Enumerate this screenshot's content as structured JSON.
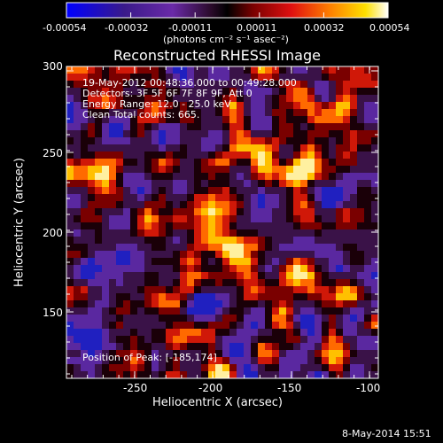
{
  "colorbar": {
    "tick_labels": [
      "-0.00054",
      "-0.00032",
      "-0.00011",
      "0.00011",
      "0.00032",
      "0.00054"
    ],
    "units": "(photons cm⁻² s⁻¹ asec⁻²)",
    "min": -0.00054,
    "max": 0.00054
  },
  "title": "Reconstructed RHESSI Image",
  "info": {
    "line1": "19-May-2012 00:48:36.000 to 00:49:28.000",
    "line2": "Detectors: 3F 5F 6F 7F 8F 9F, Att 0",
    "line3": "Energy Range: 12.0 - 25.0 keV",
    "line4": "Clean    Total counts: 665."
  },
  "peak_text": "Position of Peak: [-185,174]",
  "axes": {
    "x_title": "Heliocentric X (arcsec)",
    "y_title": "Heliocentric Y (arcsec)",
    "x_ticks": [
      "-250",
      "-200",
      "-150",
      "-100"
    ],
    "y_ticks": [
      "300",
      "250",
      "200",
      "150"
    ],
    "x_range": [
      -290,
      -96
    ],
    "y_range": [
      110,
      304
    ]
  },
  "footer_date": "8-May-2014 15:51",
  "colors": {
    "background": "#000000",
    "foreground": "#ffffff"
  }
}
